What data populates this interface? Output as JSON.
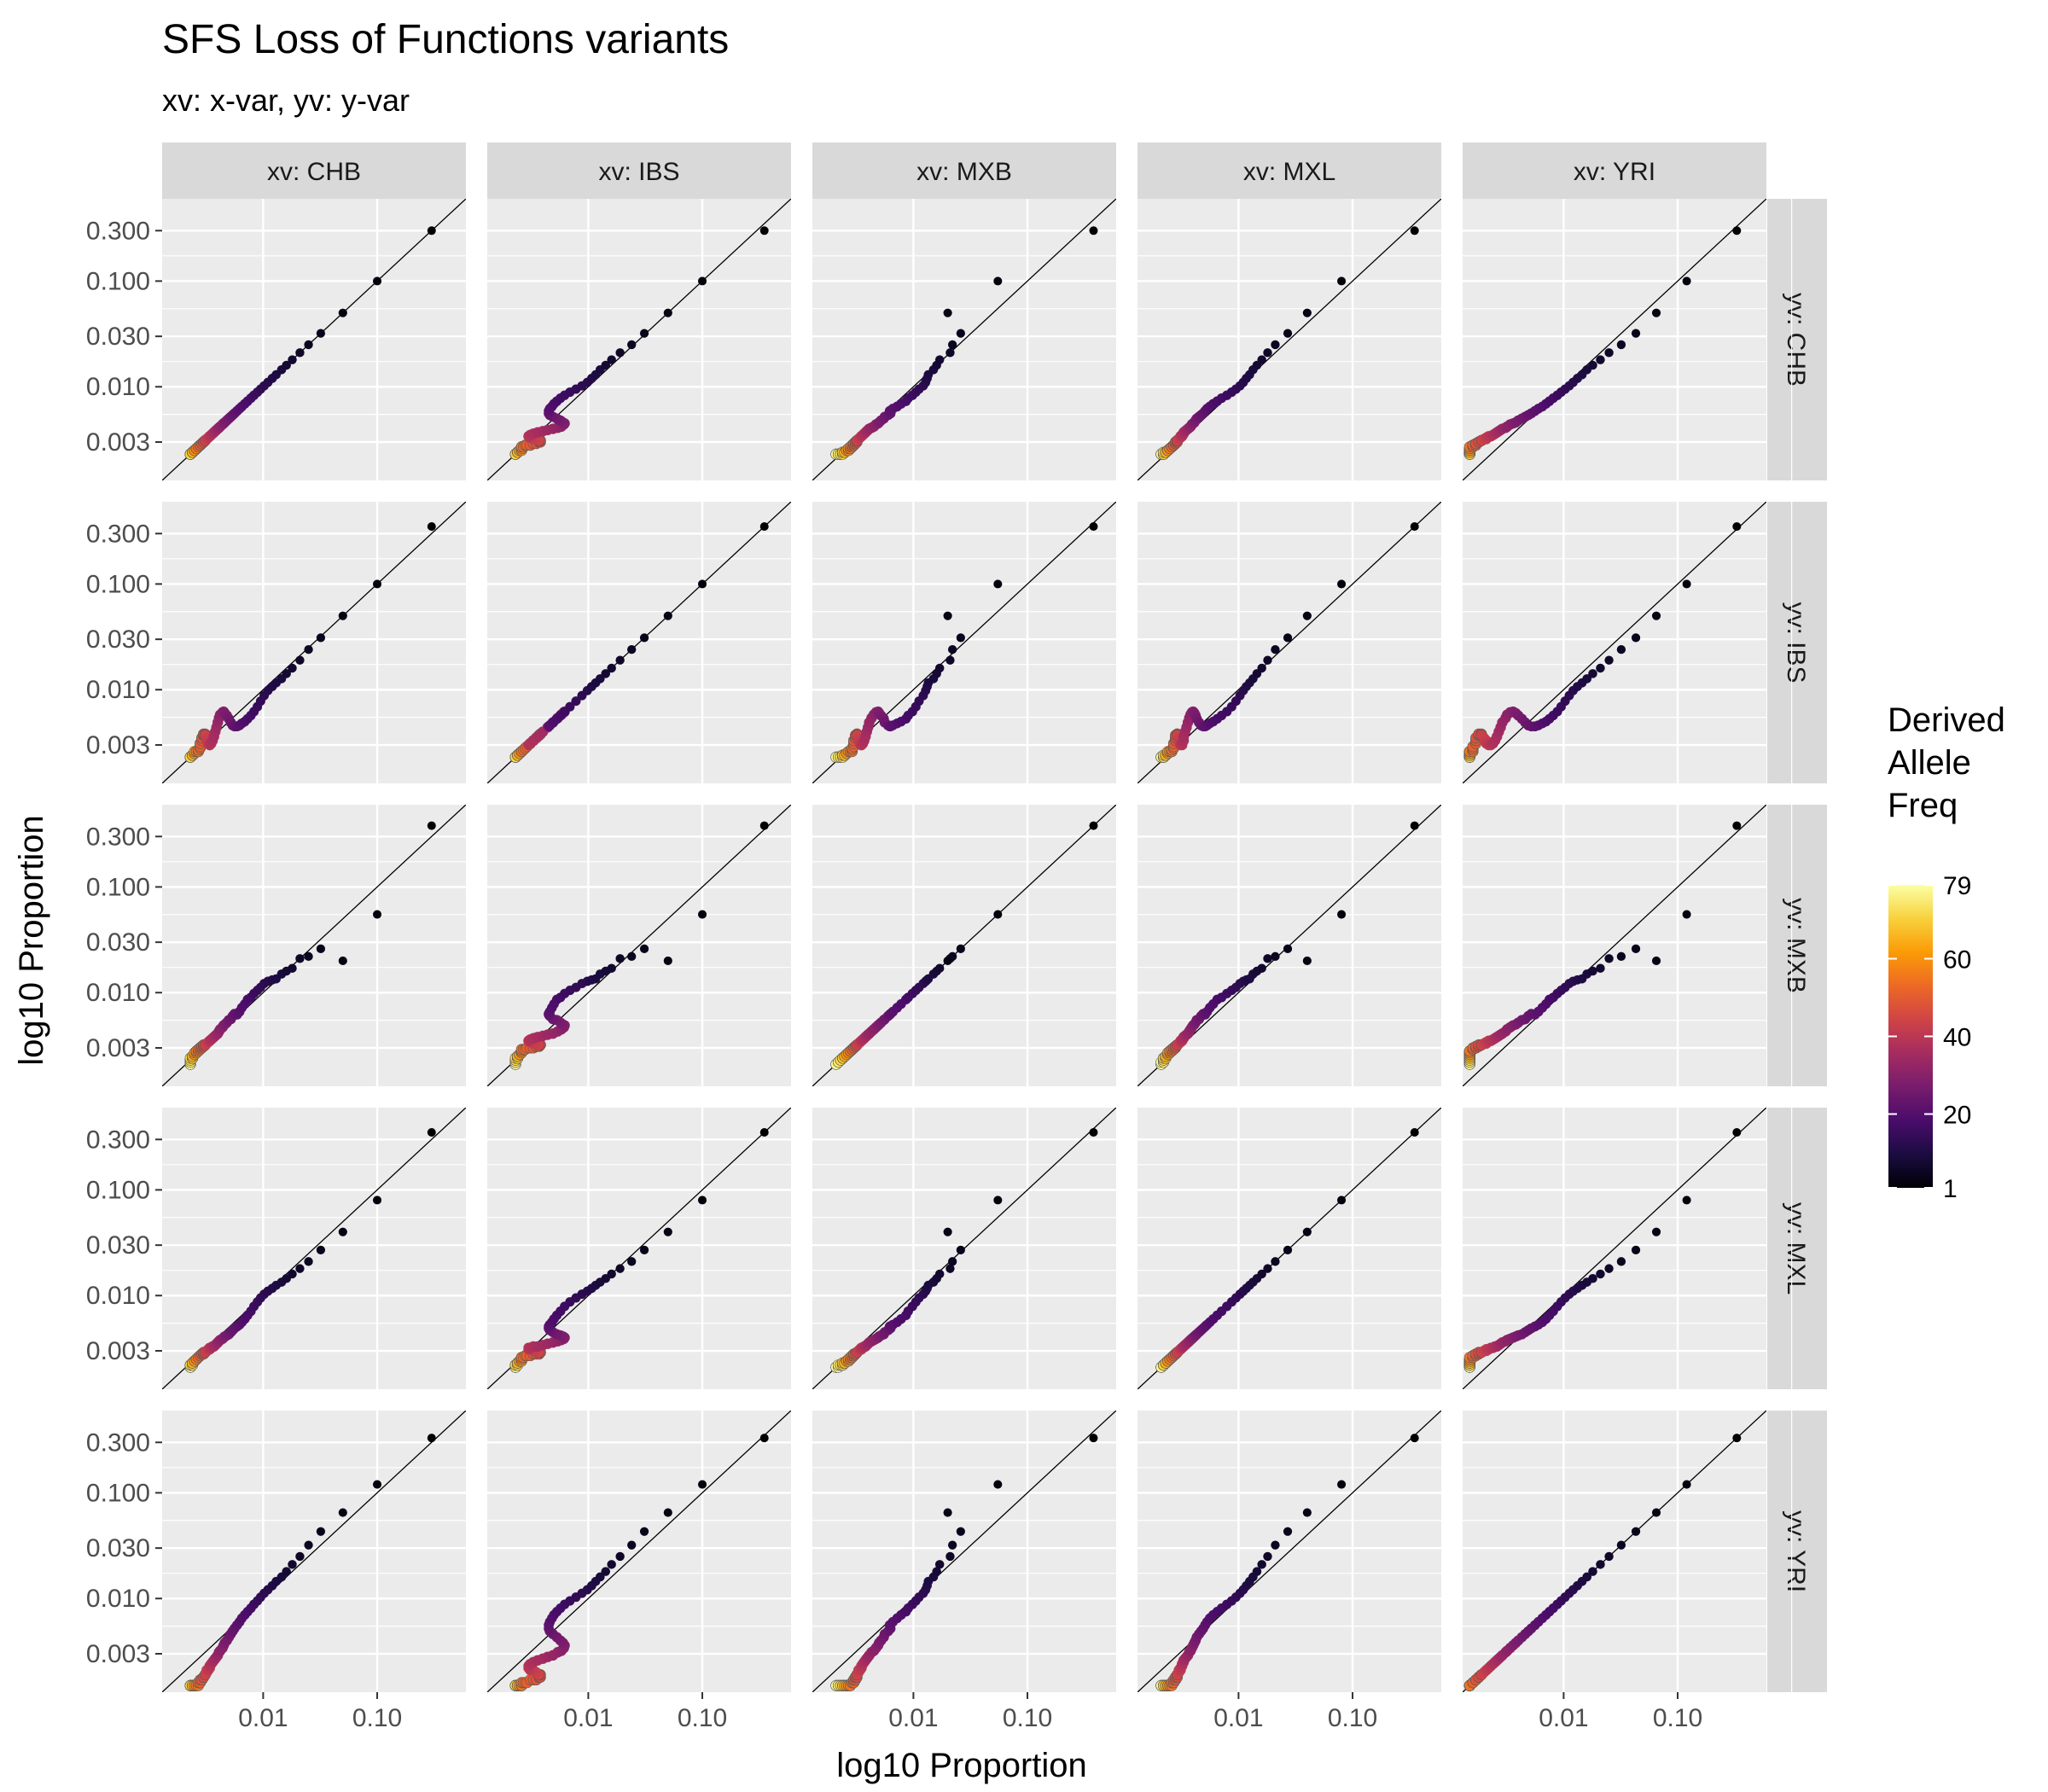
{
  "chart_data": {
    "type": "scatter",
    "title": "SFS Loss of Functions variants",
    "subtitle": "xv: x-var, yv: y-var",
    "xlabel": "log10  Proportion",
    "ylabel": "log10  Proportion",
    "scale": "log10",
    "xlim": [
      0.0013,
      0.6
    ],
    "ylim": [
      0.0013,
      0.6
    ],
    "x_ticks": [
      0.01,
      0.1
    ],
    "x_tick_labels": [
      "0.01",
      "0.10"
    ],
    "y_ticks": [
      0.003,
      0.01,
      0.03,
      0.1,
      0.3
    ],
    "y_tick_labels": [
      "0.003",
      "0.010",
      "0.030",
      "0.100",
      "0.300"
    ],
    "grid": true,
    "reference_line": "y = x",
    "facet_columns": [
      "xv: CHB",
      "xv: IBS",
      "xv: MXB",
      "xv: MXL",
      "xv: YRI"
    ],
    "facet_rows": [
      "yv: CHB",
      "yv: IBS",
      "yv: MXB",
      "yv: MXL",
      "yv: YRI"
    ],
    "populations": [
      "CHB",
      "IBS",
      "MXB",
      "MXL",
      "YRI"
    ],
    "color_variable": "Derived Allele Freq",
    "legend": {
      "title_lines": [
        "Derived",
        "Allele",
        "Freq"
      ],
      "ticks": [
        1,
        20,
        40,
        60,
        79
      ],
      "tick_labels": [
        "1",
        "20",
        "40",
        "60",
        "79"
      ],
      "range": [
        1,
        79
      ],
      "colors": [
        "#000004",
        "#1b0c41",
        "#4a0c6b",
        "#781c6d",
        "#a52c60",
        "#cf4446",
        "#ed6925",
        "#fb9b06",
        "#f7d13d",
        "#fcffa4"
      ],
      "placement": "right"
    },
    "derived_allele_freq": {
      "min": 1,
      "max": 79,
      "step": 1
    },
    "series": [
      {
        "population": "CHB",
        "proportions": [
          0.3,
          0.1,
          0.05,
          0.032,
          0.025,
          0.021,
          0.018,
          0.016,
          0.0145,
          0.013,
          0.012,
          0.011,
          0.0102,
          0.0095,
          0.0089,
          0.0083,
          0.0078,
          0.0073,
          0.0069,
          0.0065,
          0.0062,
          0.0059,
          0.0056,
          0.0054,
          0.0052,
          0.005,
          0.0048,
          0.0046,
          0.0045,
          0.0044,
          0.0042,
          0.0041,
          0.004,
          0.0039,
          0.0038,
          0.0037,
          0.0036,
          0.0035,
          0.0034,
          0.0034,
          0.0033,
          0.0032,
          0.0032,
          0.0031,
          0.0031,
          0.003,
          0.003,
          0.0029,
          0.0029,
          0.0028,
          0.0028,
          0.0028,
          0.0027,
          0.0027,
          0.0027,
          0.0026,
          0.0026,
          0.0026,
          0.0026,
          0.0025,
          0.0025,
          0.0025,
          0.0025,
          0.0025,
          0.0024,
          0.0024,
          0.0024,
          0.0024,
          0.0024,
          0.0024,
          0.0023,
          0.0023,
          0.0023,
          0.0023,
          0.0023,
          0.0023,
          0.0023,
          0.0023,
          0.0023
        ]
      },
      {
        "population": "IBS",
        "proportions": [
          0.35,
          0.1,
          0.05,
          0.031,
          0.024,
          0.019,
          0.016,
          0.0142,
          0.0127,
          0.0116,
          0.0107,
          0.0098,
          0.0088,
          0.0078,
          0.0069,
          0.0062,
          0.0057,
          0.0053,
          0.005,
          0.0048,
          0.0046,
          0.0045,
          0.0045,
          0.0046,
          0.0049,
          0.0053,
          0.0057,
          0.006,
          0.0062,
          0.0061,
          0.0058,
          0.0054,
          0.0049,
          0.0044,
          0.004,
          0.0036,
          0.0033,
          0.0031,
          0.003,
          0.003,
          0.0031,
          0.0033,
          0.0035,
          0.0037,
          0.0038,
          0.0038,
          0.0037,
          0.0035,
          0.0033,
          0.0031,
          0.0029,
          0.0028,
          0.0027,
          0.0026,
          0.0026,
          0.0026,
          0.0026,
          0.0026,
          0.0026,
          0.0026,
          0.0025,
          0.0025,
          0.0025,
          0.0025,
          0.0024,
          0.0024,
          0.0024,
          0.0024,
          0.0024,
          0.0024,
          0.0023,
          0.0023,
          0.0023,
          0.0023,
          0.0023,
          0.0023,
          0.0023,
          0.0023,
          0.0023
        ]
      },
      {
        "population": "MXB",
        "proportions": [
          0.38,
          0.055,
          0.02,
          0.026,
          0.022,
          0.021,
          0.017,
          0.016,
          0.015,
          0.0135,
          0.0132,
          0.0128,
          0.0122,
          0.0112,
          0.0105,
          0.0098,
          0.009,
          0.0086,
          0.0078,
          0.0072,
          0.0066,
          0.0062,
          0.0063,
          0.006,
          0.0056,
          0.0055,
          0.0052,
          0.005,
          0.0049,
          0.0047,
          0.0045,
          0.0043,
          0.0041,
          0.004,
          0.0039,
          0.0038,
          0.0037,
          0.0036,
          0.0035,
          0.0035,
          0.0034,
          0.0033,
          0.0033,
          0.0032,
          0.0032,
          0.0032,
          0.0031,
          0.0031,
          0.003,
          0.003,
          0.003,
          0.0029,
          0.0029,
          0.0029,
          0.0028,
          0.0028,
          0.0028,
          0.0027,
          0.0027,
          0.0027,
          0.0026,
          0.0026,
          0.0026,
          0.0026,
          0.0025,
          0.0025,
          0.0025,
          0.0024,
          0.0024,
          0.0024,
          0.0024,
          0.0023,
          0.0023,
          0.0023,
          0.0022,
          0.0022,
          0.0022,
          0.0021,
          0.0021
        ]
      },
      {
        "population": "MXL",
        "proportions": [
          0.35,
          0.08,
          0.04,
          0.027,
          0.021,
          0.018,
          0.016,
          0.0145,
          0.0134,
          0.0125,
          0.0117,
          0.011,
          0.0103,
          0.0095,
          0.0087,
          0.0079,
          0.0071,
          0.0065,
          0.006,
          0.0056,
          0.0053,
          0.0051,
          0.0049,
          0.0047,
          0.0045,
          0.0043,
          0.0042,
          0.0041,
          0.004,
          0.0039,
          0.0038,
          0.0037,
          0.0036,
          0.0035,
          0.0034,
          0.0033,
          0.0033,
          0.0032,
          0.0032,
          0.0031,
          0.0031,
          0.003,
          0.003,
          0.0029,
          0.0029,
          0.0029,
          0.0028,
          0.0028,
          0.0028,
          0.0027,
          0.0027,
          0.0027,
          0.0026,
          0.0026,
          0.0026,
          0.0025,
          0.0025,
          0.0025,
          0.0025,
          0.0024,
          0.0024,
          0.0024,
          0.0024,
          0.0024,
          0.0023,
          0.0023,
          0.0023,
          0.0023,
          0.0023,
          0.0022,
          0.0022,
          0.0022,
          0.0022,
          0.0022,
          0.0022,
          0.0022,
          0.0021,
          0.0021,
          0.0021
        ]
      },
      {
        "population": "YRI",
        "proportions": [
          0.33,
          0.12,
          0.065,
          0.043,
          0.032,
          0.025,
          0.021,
          0.018,
          0.016,
          0.0145,
          0.0132,
          0.0121,
          0.0112,
          0.0103,
          0.0095,
          0.0088,
          0.0081,
          0.0075,
          0.007,
          0.0065,
          0.006,
          0.0056,
          0.0052,
          0.0049,
          0.0046,
          0.0043,
          0.004,
          0.0038,
          0.0036,
          0.0034,
          0.0032,
          0.0031,
          0.0029,
          0.0028,
          0.0027,
          0.0026,
          0.0025,
          0.0024,
          0.0023,
          0.0022,
          0.0021,
          0.0021,
          0.002,
          0.0019,
          0.0019,
          0.0018,
          0.0018,
          0.0017,
          0.0017,
          0.0017,
          0.0016,
          0.0016,
          0.0016,
          0.0016,
          0.0015,
          0.0015,
          0.0015,
          0.0015,
          0.0015,
          0.0015,
          0.0015,
          0.0015,
          0.0015,
          0.0015,
          0.0015,
          0.0015,
          0.0015,
          0.0015,
          0.0015,
          0.0015,
          0.0015,
          0.0015,
          0.0015,
          0.0015,
          0.0015,
          0.0015,
          0.0015,
          0.0015,
          0.0015
        ]
      }
    ]
  }
}
